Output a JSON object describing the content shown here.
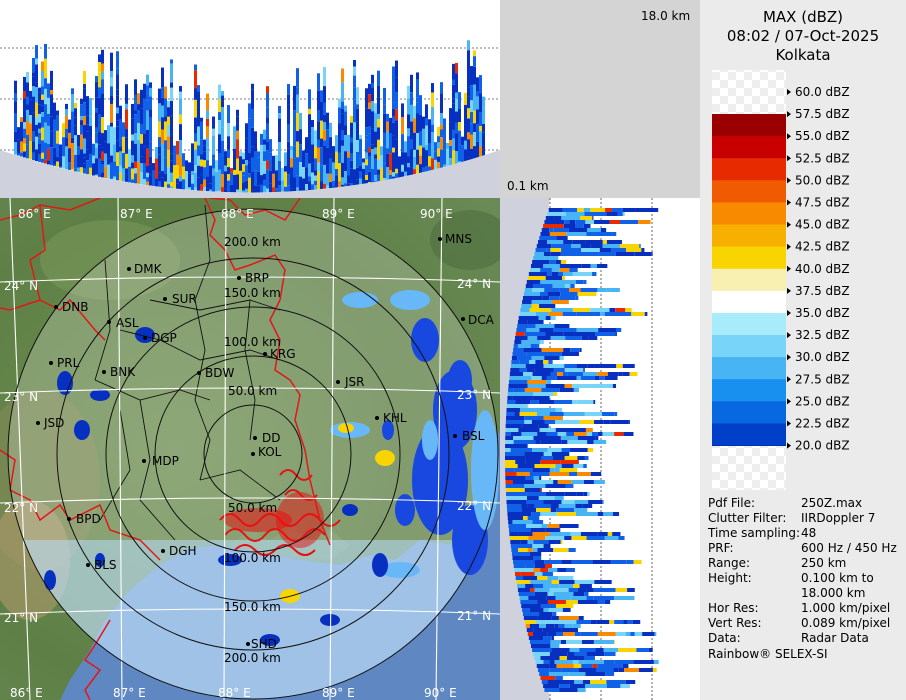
{
  "product": {
    "title": "MAX (dBZ)",
    "datetime": "08:02 / 07-Oct-2025",
    "station": "Kolkata"
  },
  "height_labels": {
    "top": "18.0 km",
    "bottom": "0.1 km"
  },
  "legend": {
    "levels": [
      "60.0 dBZ",
      "57.5 dBZ",
      "55.0 dBZ",
      "52.5 dBZ",
      "50.0 dBZ",
      "47.5 dBZ",
      "45.0 dBZ",
      "42.5 dBZ",
      "40.0 dBZ",
      "37.5 dBZ",
      "35.0 dBZ",
      "32.5 dBZ",
      "30.0 dBZ",
      "27.5 dBZ",
      "25.0 dBZ",
      "22.5 dBZ",
      "20.0 dBZ"
    ],
    "colors": [
      "#9a0000",
      "#c80000",
      "#e82a00",
      "#f05a00",
      "#f88a00",
      "#f8b000",
      "#f8d400",
      "#f8f0b0",
      "#ffffff",
      "#a8ecfc",
      "#78d4f8",
      "#48b4f4",
      "#1890f0",
      "#0868e0",
      "#0040c8",
      "#0020a8",
      "#001888"
    ]
  },
  "longitude_labels": [
    "86° E",
    "87° E",
    "88° E",
    "89° E",
    "90° E"
  ],
  "latitude_labels": [
    "24° N",
    "23° N",
    "22° N",
    "21° N"
  ],
  "range_labels": [
    "200.0 km",
    "150.0 km",
    "100.0 km",
    "50.0 km"
  ],
  "range_labels_south": [
    "50.0 km",
    "100.0 km",
    "150.0 km",
    "200.0 km"
  ],
  "cities": [
    "MNS",
    "DMK",
    "BRP",
    "DNB",
    "SUR",
    "ASL",
    "DGP",
    "DCA",
    "PRL",
    "KRG",
    "BNK",
    "BDW",
    "JSR",
    "KHL",
    "JSD",
    "DD",
    "BSL",
    "KOL",
    "MDP",
    "BPD",
    "DGH",
    "BLS",
    "SHD"
  ],
  "info": {
    "rows": [
      {
        "label": "Pdf File:",
        "value": "250Z.max"
      },
      {
        "label": "Clutter Filter:",
        "value": "IIRDoppler 7"
      },
      {
        "label": "Time sampling:",
        "value": "48"
      },
      {
        "label": "PRF:",
        "value": "600 Hz / 450 Hz"
      },
      {
        "label": "Range:",
        "value": "250 km"
      },
      {
        "label": "Height:",
        "value": "0.100 km to"
      },
      {
        "label": "",
        "value": "18.000 km"
      },
      {
        "label": "Hor Res:",
        "value": "1.000 km/pixel"
      },
      {
        "label": "Vert Res:",
        "value": "0.089 km/pixel"
      },
      {
        "label": "Data:",
        "value": "Radar Data"
      }
    ],
    "credit": "Rainbow® SELEX-SI"
  }
}
